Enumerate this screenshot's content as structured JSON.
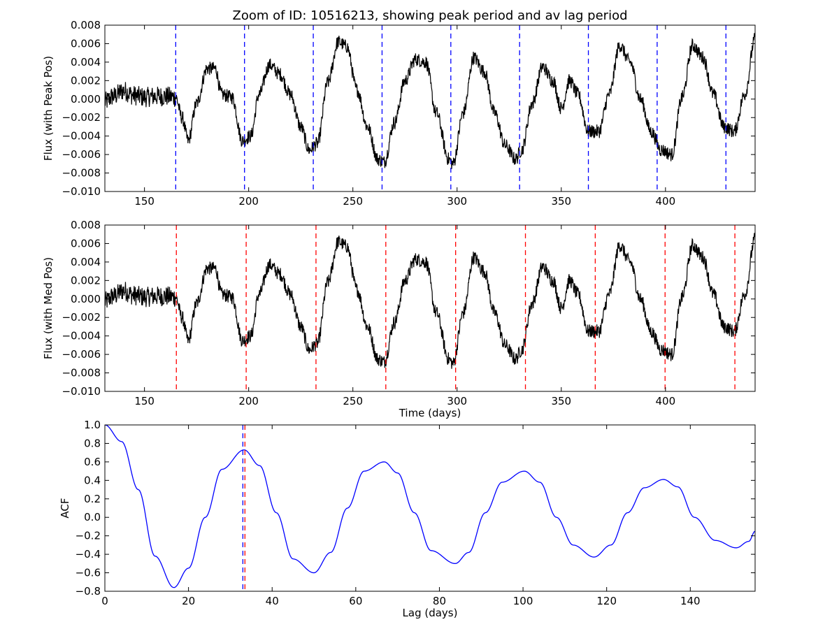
{
  "figure": {
    "title": "Zoom of ID: 10516213, showing peak period and av lag period"
  },
  "colors": {
    "flux_line": "#000000",
    "acf_line": "#0000ff",
    "peak_marker": "#0000ff",
    "median_marker": "#ff0000"
  },
  "chart_data": [
    {
      "type": "line",
      "name": "Flux with peak positions",
      "xlabel": "",
      "ylabel": "Flux (with Peak Pos)",
      "xlim": [
        131,
        443
      ],
      "ylim": [
        -0.01,
        0.008
      ],
      "xticks": [
        150,
        200,
        250,
        300,
        350,
        400
      ],
      "yticks": [
        -0.01,
        -0.008,
        -0.006,
        -0.004,
        -0.002,
        0.0,
        0.002,
        0.004,
        0.006,
        0.008
      ],
      "ytick_labels": [
        "−0.010",
        "−0.008",
        "−0.006",
        "−0.004",
        "−0.002",
        "0.000",
        "0.002",
        "0.004",
        "0.006",
        "0.008"
      ],
      "series": [
        {
          "x": [
            131,
            135,
            140,
            145,
            150,
            155,
            160,
            165,
            168,
            171,
            175,
            180,
            184,
            187,
            192,
            197,
            201,
            205,
            210,
            215,
            220,
            225,
            229,
            233,
            238,
            243,
            247,
            252,
            257,
            262,
            265,
            270,
            275,
            280,
            285,
            290,
            296,
            298,
            303,
            308,
            313,
            318,
            323,
            328,
            331,
            336,
            341,
            346,
            350,
            354,
            358,
            363,
            368,
            373,
            378,
            383,
            388,
            393,
            398,
            403,
            408,
            413,
            418,
            423,
            428,
            433,
            438,
            443
          ],
          "y": [
            -0.0003,
            0.0003,
            0.0009,
            0.0004,
            0.0002,
            0.0003,
            0.0003,
            0.0002,
            -0.002,
            -0.0045,
            -0.0005,
            0.0033,
            0.0033,
            0.0005,
            0.0002,
            -0.0045,
            -0.004,
            0.0005,
            0.0037,
            0.0027,
            0.0005,
            -0.003,
            -0.0055,
            -0.0048,
            0.0018,
            0.0062,
            0.0057,
            0.001,
            -0.003,
            -0.0065,
            -0.0068,
            -0.0025,
            0.002,
            0.0043,
            0.004,
            -0.0015,
            -0.0065,
            -0.007,
            -0.0015,
            0.0045,
            0.003,
            -0.0015,
            -0.005,
            -0.0065,
            -0.0055,
            -0.0005,
            0.0035,
            0.002,
            -0.001,
            0.002,
            0.0005,
            -0.0035,
            -0.0035,
            0.0005,
            0.0058,
            0.004,
            0.0,
            -0.0035,
            -0.0055,
            -0.006,
            0.0002,
            0.0058,
            0.0045,
            0.0005,
            -0.003,
            -0.0035,
            0.0005,
            0.0065
          ]
        }
      ],
      "vlines": [
        165,
        198,
        231,
        264,
        297,
        330,
        363,
        396,
        429
      ]
    },
    {
      "type": "line",
      "name": "Flux with median positions",
      "xlabel": "Time (days)",
      "ylabel": "Flux (with Med Pos)",
      "xlim": [
        131,
        443
      ],
      "ylim": [
        -0.01,
        0.008
      ],
      "xticks": [
        150,
        200,
        250,
        300,
        350,
        400
      ],
      "yticks": [
        -0.01,
        -0.008,
        -0.006,
        -0.004,
        -0.002,
        0.0,
        0.002,
        0.004,
        0.006,
        0.008
      ],
      "ytick_labels": [
        "−0.010",
        "−0.008",
        "−0.006",
        "−0.004",
        "−0.002",
        "0.000",
        "0.002",
        "0.004",
        "0.006",
        "0.008"
      ],
      "series": [
        {
          "x": [
            131,
            135,
            140,
            145,
            150,
            155,
            160,
            165,
            168,
            171,
            175,
            180,
            184,
            187,
            192,
            197,
            201,
            205,
            210,
            215,
            220,
            225,
            229,
            233,
            238,
            243,
            247,
            252,
            257,
            262,
            265,
            270,
            275,
            280,
            285,
            290,
            296,
            298,
            303,
            308,
            313,
            318,
            323,
            328,
            331,
            336,
            341,
            346,
            350,
            354,
            358,
            363,
            368,
            373,
            378,
            383,
            388,
            393,
            398,
            403,
            408,
            413,
            418,
            423,
            428,
            433,
            438,
            443
          ],
          "y": [
            -0.0003,
            0.0003,
            0.0009,
            0.0004,
            0.0002,
            0.0003,
            0.0003,
            0.0002,
            -0.002,
            -0.0045,
            -0.0005,
            0.0033,
            0.0033,
            0.0005,
            0.0002,
            -0.0045,
            -0.004,
            0.0005,
            0.0037,
            0.0027,
            0.0005,
            -0.003,
            -0.0055,
            -0.0048,
            0.0018,
            0.0062,
            0.0057,
            0.001,
            -0.003,
            -0.0065,
            -0.0068,
            -0.0025,
            0.002,
            0.0043,
            0.004,
            -0.0015,
            -0.0065,
            -0.007,
            -0.0015,
            0.0045,
            0.003,
            -0.0015,
            -0.005,
            -0.0065,
            -0.0055,
            -0.0005,
            0.0035,
            0.002,
            -0.001,
            0.002,
            0.0005,
            -0.0035,
            -0.0035,
            0.0005,
            0.0058,
            0.004,
            0.0,
            -0.0035,
            -0.0055,
            -0.006,
            0.0002,
            0.0058,
            0.0045,
            0.0005,
            -0.003,
            -0.0035,
            0.0005,
            0.0065
          ]
        }
      ],
      "vlines": [
        165.3,
        198.8,
        232.3,
        265.8,
        299.3,
        332.8,
        366.3,
        399.8,
        433.3
      ]
    },
    {
      "type": "line",
      "name": "Autocorrelation function",
      "xlabel": "Lag (days)",
      "ylabel": "ACF",
      "xlim": [
        0,
        155.5
      ],
      "ylim": [
        -0.8,
        1.0
      ],
      "xticks": [
        0,
        20,
        40,
        60,
        80,
        100,
        120,
        140
      ],
      "yticks": [
        -0.8,
        -0.6,
        -0.4,
        -0.2,
        0.0,
        0.2,
        0.4,
        0.6,
        0.8,
        1.0
      ],
      "ytick_labels": [
        "−0.8",
        "−0.6",
        "−0.4",
        "−0.2",
        "0.0",
        "0.2",
        "0.4",
        "0.6",
        "0.8",
        "1.0"
      ],
      "series": [
        {
          "x": [
            0,
            4,
            8,
            12,
            16.5,
            20,
            24,
            28,
            33.3,
            37,
            41,
            45,
            50,
            54,
            58,
            62,
            66.8,
            70,
            74,
            78,
            83.8,
            87,
            91,
            95,
            100.3,
            104,
            108,
            112,
            117,
            121,
            125,
            129,
            133.6,
            137,
            141,
            146,
            151,
            154,
            155.5
          ],
          "y": [
            1.0,
            0.82,
            0.3,
            -0.42,
            -0.76,
            -0.55,
            0.0,
            0.52,
            0.73,
            0.56,
            0.05,
            -0.45,
            -0.6,
            -0.38,
            0.1,
            0.5,
            0.6,
            0.48,
            0.05,
            -0.36,
            -0.5,
            -0.38,
            0.05,
            0.38,
            0.5,
            0.38,
            0.0,
            -0.3,
            -0.43,
            -0.3,
            0.05,
            0.32,
            0.41,
            0.33,
            0.0,
            -0.25,
            -0.33,
            -0.26,
            -0.15
          ]
        }
      ],
      "vlines": [
        {
          "x": 33.0,
          "role": "peak"
        },
        {
          "x": 33.5,
          "role": "median"
        }
      ]
    }
  ]
}
